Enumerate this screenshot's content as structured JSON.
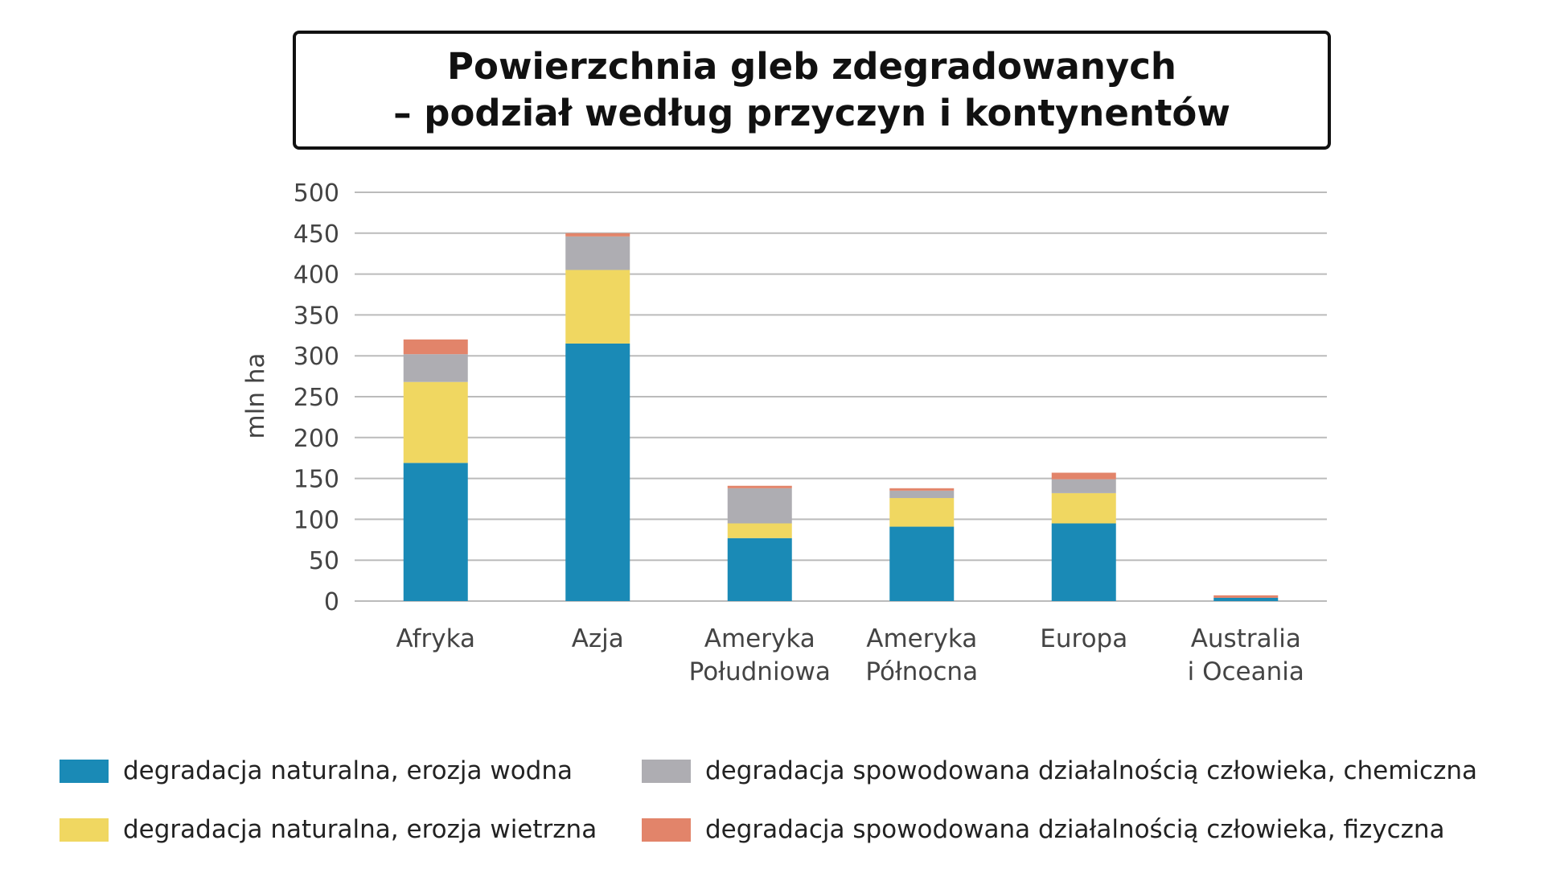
{
  "chart_data": {
    "type": "bar",
    "stacked": true,
    "title": [
      "Powierzchnia gleb zdegradowanych",
      "– podział według przyczyn i kontynentów"
    ],
    "xlabel": "",
    "ylabel": "mln ha",
    "ylim": [
      0,
      500
    ],
    "yticks": [
      0,
      50,
      100,
      150,
      200,
      250,
      300,
      350,
      400,
      450,
      500
    ],
    "grid": true,
    "legend_position": "bottom",
    "categories": [
      [
        "Afryka"
      ],
      [
        "Azja"
      ],
      [
        "Ameryka",
        "Południowa"
      ],
      [
        "Ameryka",
        "Północna"
      ],
      [
        "Europa"
      ],
      [
        "Australia",
        "i Oceania"
      ]
    ],
    "series": [
      {
        "name": "degradacja naturalna, erozja wodna",
        "color": "#1a8ab6",
        "values": [
          169,
          315,
          77,
          91,
          95,
          4
        ]
      },
      {
        "name": "degradacja naturalna, erozja wietrzna",
        "color": "#f0d761",
        "values": [
          99,
          90,
          18,
          35,
          37,
          0
        ]
      },
      {
        "name": "degradacja spowodowana działalnością człowieka, chemiczna",
        "color": "#aeadb2",
        "values": [
          34,
          41,
          43,
          9,
          17,
          0
        ]
      },
      {
        "name": "degradacja spowodowana działalnością człowieka, fizyczna",
        "color": "#e2846a",
        "values": [
          18,
          4,
          3,
          3,
          8,
          3
        ]
      }
    ]
  }
}
